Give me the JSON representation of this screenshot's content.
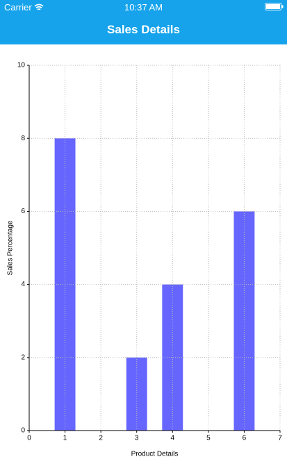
{
  "status_bar": {
    "carrier": "Carrier",
    "time": "10:37 AM"
  },
  "nav_bar": {
    "title": "Sales Details"
  },
  "chart_data": {
    "type": "bar",
    "x": [
      1,
      3,
      4,
      6
    ],
    "values": [
      8,
      2,
      4,
      6
    ],
    "color": "#6666ff",
    "x_label": "Product Details",
    "y_label": "Sales Percentage",
    "xlim": [
      0,
      7
    ],
    "xticks": [
      0,
      1,
      2,
      3,
      4,
      5,
      6,
      7
    ],
    "ylim": [
      0,
      10
    ],
    "yticks": [
      0,
      2,
      4,
      6,
      8,
      10
    ],
    "grid": true
  }
}
